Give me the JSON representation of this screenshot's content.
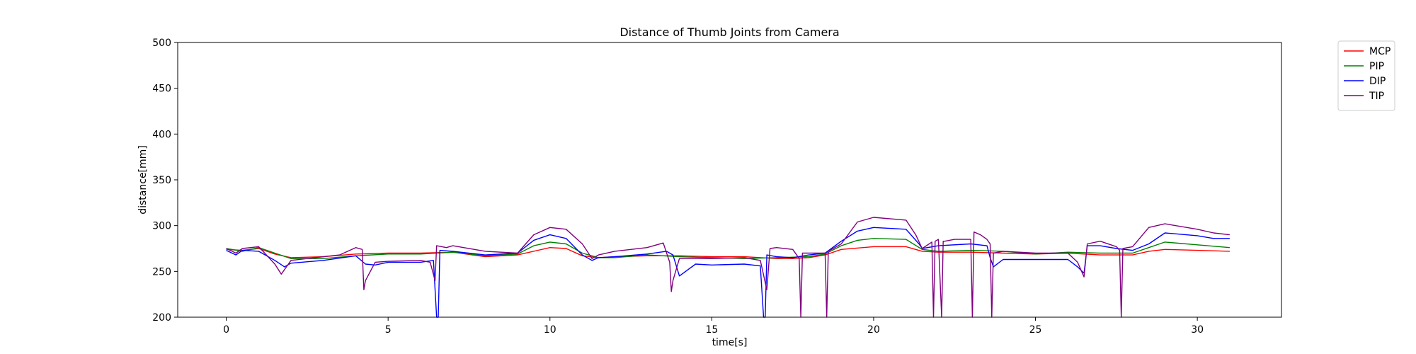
{
  "chart_data": {
    "type": "line",
    "title": "Distance of Thumb Joints from Camera",
    "xlabel": "time[s]",
    "ylabel": "distance[mm]",
    "xlim": [
      -1.5,
      32.6
    ],
    "ylim": [
      200,
      500
    ],
    "xticks": [
      0,
      5,
      10,
      15,
      20,
      25,
      30
    ],
    "yticks": [
      200,
      250,
      300,
      350,
      400,
      450,
      500
    ],
    "grid": false,
    "legend_position": "outside-top-right",
    "series": [
      {
        "name": "MCP",
        "color": "#ff0000",
        "x": [
          0,
          0.5,
          1,
          1.5,
          2,
          3,
          4,
          5,
          6,
          7,
          8,
          9,
          10,
          10.5,
          11,
          11.5,
          12,
          13,
          14,
          15,
          16,
          17,
          17.5,
          18,
          18.5,
          19,
          20,
          21,
          21.5,
          22,
          23,
          24,
          25,
          26,
          27,
          28,
          28.5,
          29,
          30,
          31
        ],
        "y": [
          274,
          273,
          275,
          269,
          265,
          266,
          269,
          270,
          270,
          271,
          266,
          268,
          276,
          275,
          267,
          265,
          266,
          267,
          267,
          266,
          266,
          264,
          264,
          265,
          268,
          274,
          277,
          277,
          272,
          271,
          271,
          270,
          269,
          270,
          268,
          268,
          272,
          274,
          273,
          272
        ]
      },
      {
        "name": "PIP",
        "color": "#008000",
        "x": [
          0,
          0.5,
          1,
          1.5,
          2,
          3,
          4,
          5,
          6,
          7,
          8,
          9,
          9.5,
          10,
          10.5,
          11,
          11.5,
          12,
          13,
          14,
          15,
          16,
          17,
          18,
          18.5,
          19,
          19.5,
          20,
          21,
          21.5,
          22,
          23,
          24,
          25,
          26,
          27,
          28,
          28.5,
          29,
          30,
          31
        ],
        "y": [
          275,
          272,
          276,
          270,
          264,
          264,
          267,
          269,
          269,
          271,
          267,
          269,
          278,
          282,
          280,
          270,
          265,
          265,
          268,
          266,
          265,
          264,
          265,
          266,
          269,
          278,
          284,
          286,
          285,
          274,
          272,
          273,
          272,
          269,
          271,
          270,
          270,
          276,
          282,
          279,
          276
        ]
      },
      {
        "name": "DIP",
        "color": "#0000ff",
        "x": [
          0,
          0.3,
          0.5,
          1,
          1.5,
          1.8,
          2,
          3,
          4,
          4.3,
          4.6,
          5,
          6,
          6.4,
          6.5,
          6.55,
          6.6,
          7,
          8,
          9,
          9.5,
          10,
          10.5,
          11,
          11.3,
          11.5,
          12,
          13,
          13.6,
          13.8,
          14,
          14.5,
          15,
          16,
          16.5,
          16.6,
          16.65,
          16.7,
          17,
          17.5,
          18,
          18.5,
          19,
          19.5,
          20,
          21,
          21.4,
          21.5,
          22,
          23,
          23.5,
          23.6,
          23.7,
          24,
          25,
          26,
          26.3,
          26.5,
          26.6,
          27,
          27.5,
          28,
          28.5,
          29,
          30,
          30.5,
          31
        ],
        "y": [
          273,
          268,
          273,
          272,
          262,
          255,
          259,
          262,
          267,
          258,
          257,
          260,
          260,
          262,
          200,
          200,
          273,
          272,
          268,
          270,
          284,
          290,
          286,
          268,
          262,
          265,
          266,
          269,
          272,
          268,
          245,
          258,
          257,
          258,
          256,
          200,
          200,
          268,
          266,
          265,
          268,
          270,
          283,
          294,
          298,
          296,
          280,
          275,
          278,
          280,
          278,
          265,
          255,
          263,
          263,
          263,
          255,
          248,
          278,
          278,
          275,
          273,
          280,
          292,
          289,
          286,
          286
        ]
      },
      {
        "name": "TIP",
        "color": "#800080",
        "x": [
          0,
          0.3,
          0.5,
          1,
          1.5,
          1.7,
          2,
          3,
          3.5,
          4,
          4.2,
          4.25,
          4.3,
          4.6,
          5,
          6,
          6.3,
          6.45,
          6.5,
          6.8,
          7,
          8,
          9,
          9.5,
          10,
          10.5,
          11,
          11.3,
          11.5,
          12,
          13,
          13.5,
          13.7,
          13.75,
          13.8,
          14,
          15,
          16,
          16.5,
          16.7,
          16.8,
          17,
          17.5,
          17.7,
          17.75,
          17.8,
          18,
          18.5,
          18.55,
          18.6,
          19,
          19.5,
          20,
          21,
          21.3,
          21.5,
          21.8,
          21.85,
          21.9,
          22,
          22.1,
          22.15,
          22.2,
          22.5,
          23,
          23.05,
          23.1,
          23.3,
          23.5,
          23.6,
          23.65,
          23.7,
          24,
          25,
          26,
          26.3,
          26.5,
          26.6,
          27,
          27.5,
          27.6,
          27.65,
          27.7,
          28,
          28.5,
          29,
          30,
          30.5,
          31
        ],
        "y": [
          275,
          270,
          275,
          277,
          258,
          247,
          262,
          266,
          268,
          276,
          274,
          230,
          240,
          260,
          261,
          262,
          260,
          240,
          278,
          276,
          278,
          272,
          270,
          290,
          298,
          296,
          280,
          264,
          268,
          272,
          276,
          281,
          260,
          228,
          240,
          264,
          264,
          265,
          262,
          230,
          275,
          276,
          274,
          264,
          200,
          270,
          270,
          270,
          200,
          272,
          280,
          304,
          309,
          306,
          290,
          275,
          282,
          200,
          283,
          285,
          200,
          283,
          283,
          285,
          285,
          200,
          293,
          290,
          285,
          280,
          200,
          270,
          272,
          270,
          270,
          260,
          244,
          280,
          283,
          277,
          273,
          200,
          275,
          277,
          298,
          302,
          296,
          292,
          290
        ]
      }
    ]
  }
}
